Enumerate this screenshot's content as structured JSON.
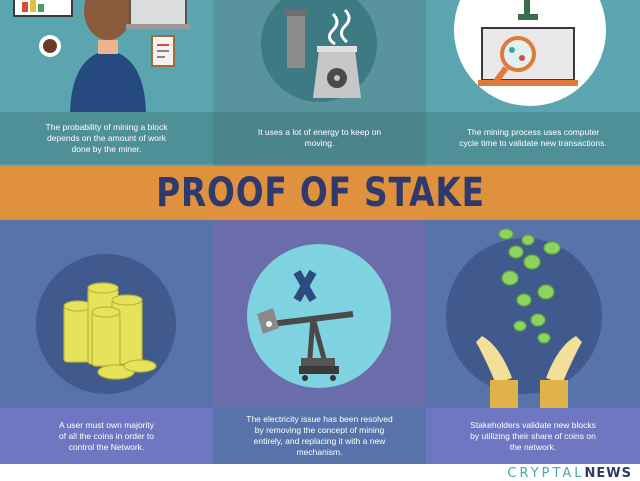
{
  "pow": {
    "captions": [
      [
        "The probability of mining a block",
        "depends on the amount of work",
        "done by the miner."
      ],
      [
        "It uses a lot of energy to keep on",
        "moving."
      ],
      [
        "The mining process uses computer",
        "cycle time to validate new transactions."
      ]
    ]
  },
  "pos": {
    "title": "PROOF OF STAKE",
    "captions": [
      [
        "A user must own majority",
        "of  all the coins in order to",
        "control the Network."
      ],
      [
        "The electricity issue has been resolved",
        "by removing the concept of mining",
        "entirely, and replacing it with a new",
        "mechanism."
      ],
      [
        "Stakeholders validate new blocks",
        "by utilizing their share of coins on",
        "the network."
      ]
    ]
  },
  "footer": {
    "brand_light": "CRYPTAL",
    "brand_bold": "NEWS"
  },
  "colors": {
    "top_left": "#5aa5af",
    "top_mid": "#58939e",
    "top_right": "#5aa5af",
    "band": "#e0913e",
    "bottom_left": "#5773aa",
    "bottom_mid": "#6b6daa",
    "bottom_right": "#5773aa",
    "coin": "#e6e35a",
    "green_coin": "#8dd35f"
  }
}
